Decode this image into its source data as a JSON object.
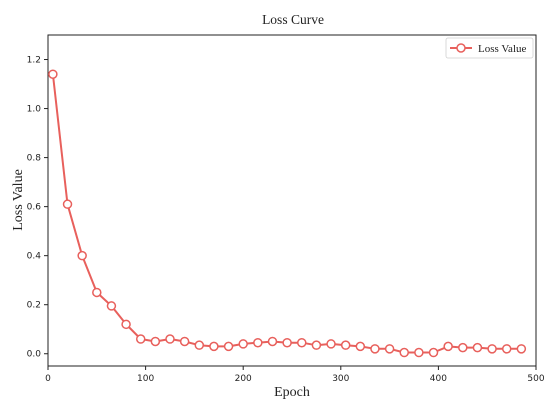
{
  "chart_data": {
    "type": "line",
    "title": "Loss Curve",
    "xlabel": "Epoch",
    "ylabel": "Loss Value",
    "xlim": [
      0,
      500
    ],
    "ylim": [
      -0.05,
      1.3
    ],
    "xticks": [
      0,
      100,
      200,
      300,
      400,
      500
    ],
    "xtick_labels": [
      "0",
      "100",
      "200",
      "300",
      "400",
      "500"
    ],
    "yticks": [
      0.0,
      0.2,
      0.4,
      0.6,
      0.8,
      1.0,
      1.2
    ],
    "ytick_labels": [
      "0.0",
      "0.2",
      "0.4",
      "0.6",
      "0.8",
      "1.0",
      "1.2"
    ],
    "grid": false,
    "legend_position": "top-right",
    "series": [
      {
        "name": "Loss Value",
        "color": "#e8605c",
        "marker": "hollow-circle",
        "x": [
          5,
          20,
          35,
          50,
          65,
          80,
          95,
          110,
          125,
          140,
          155,
          170,
          185,
          200,
          215,
          230,
          245,
          260,
          275,
          290,
          305,
          320,
          335,
          350,
          365,
          380,
          395,
          410,
          425,
          440,
          455,
          470,
          485
        ],
        "y": [
          1.14,
          0.61,
          0.4,
          0.25,
          0.195,
          0.12,
          0.06,
          0.05,
          0.06,
          0.05,
          0.035,
          0.03,
          0.03,
          0.04,
          0.045,
          0.05,
          0.045,
          0.045,
          0.035,
          0.04,
          0.035,
          0.03,
          0.02,
          0.02,
          0.005,
          0.005,
          0.005,
          0.03,
          0.025,
          0.025,
          0.02,
          0.02,
          0.02
        ]
      }
    ]
  }
}
